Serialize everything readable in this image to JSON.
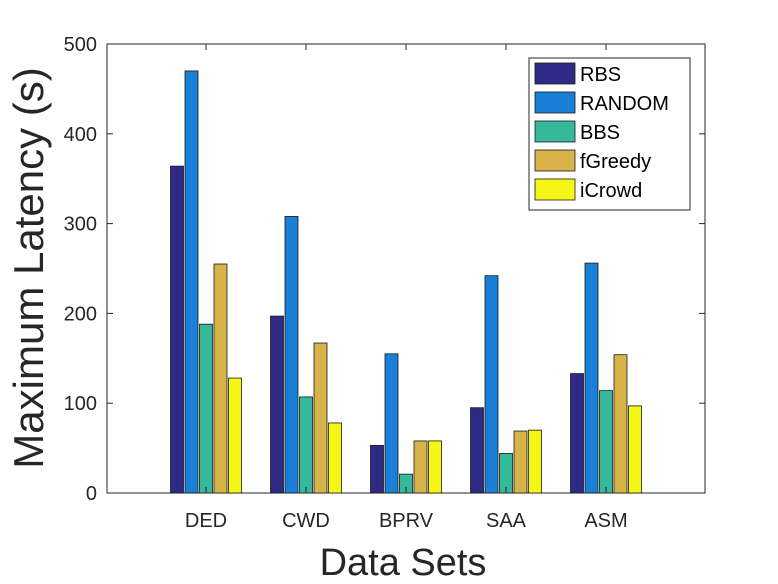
{
  "chart_data": {
    "type": "bar",
    "title": "",
    "xlabel": "Data Sets",
    "ylabel": "Maximum Latency (s)",
    "ylim": [
      0,
      500
    ],
    "yticks": [
      0,
      100,
      200,
      300,
      400,
      500
    ],
    "categories": [
      "DED",
      "CWD",
      "BPRV",
      "SAA",
      "ASM"
    ],
    "series": [
      {
        "name": "RBS",
        "color": "#2e2a86",
        "values": [
          364,
          197,
          53,
          95,
          133
        ]
      },
      {
        "name": "RANDOM",
        "color": "#1a7fd6",
        "values": [
          470,
          308,
          155,
          242,
          256
        ]
      },
      {
        "name": "BBS",
        "color": "#36b99a",
        "values": [
          188,
          107,
          21,
          44,
          114
        ]
      },
      {
        "name": "fGreedy",
        "color": "#d8b34a",
        "values": [
          255,
          167,
          58,
          69,
          154
        ]
      },
      {
        "name": "iCrowd",
        "color": "#f5f516",
        "values": [
          128,
          78,
          58,
          70,
          97
        ]
      }
    ],
    "legend_position": "top-right",
    "grid": false
  }
}
